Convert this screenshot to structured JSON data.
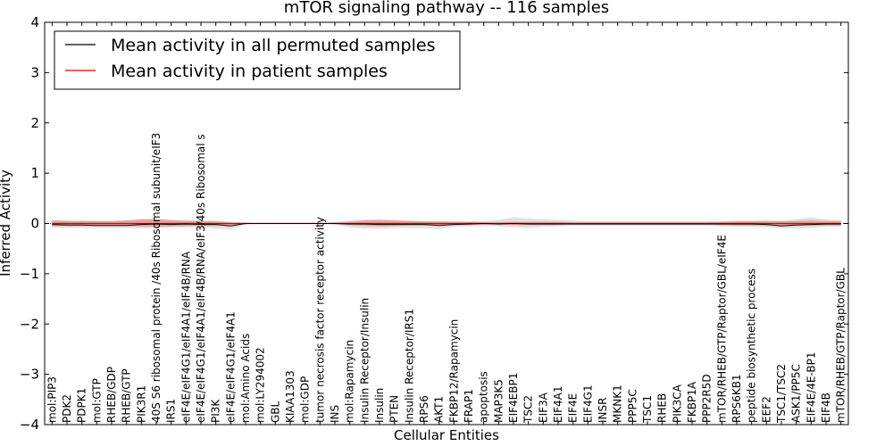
{
  "chart_data": {
    "type": "line",
    "title": "mTOR signaling pathway -- 116 samples",
    "xlabel": "Cellular Entities",
    "ylabel": "Inferred Activity",
    "ylim": [
      -4,
      4
    ],
    "yticks": [
      4,
      3,
      2,
      1,
      0,
      -1,
      -2,
      -3,
      -4
    ],
    "ytick_labels": [
      "4",
      "3",
      "2",
      "1",
      "0",
      "−1",
      "−2",
      "−3",
      "−4"
    ],
    "grid": false,
    "legend_position": "top-left",
    "colors": {
      "permuted": "#000000",
      "patient": "#e00000",
      "permuted_band": "#d9d9d9",
      "patient_band": "#f28c8c"
    },
    "categories": [
      "mol:PIP3",
      "PDK2",
      "PDPK1",
      "mol:GTP",
      "RHEB/GDP",
      "RHEB/GTP",
      "PIK3R1",
      "40S S6 ribosomal protein /40s Ribosomal subunit/eIF3",
      "IRS1",
      "eIF4E/eIF4G1/eIF4A1/eIF4B/RNA",
      "eIF4E/eIF4G1/eIF4A1/eIF4B/RNA/eIF3/40s Ribosomal s",
      "PI3K",
      "eIF4E/eIF4G1/eIF4A1",
      "mol:Amino Acids",
      "mol:LY294002",
      "GBL",
      "KIAA1303",
      "mol:GDP",
      "tumor necrosis factor receptor activity",
      "INS",
      "mol:Rapamycin",
      "Insulin Receptor/Insulin",
      "Insulin",
      "PTEN",
      "Insulin Receptor/IRS1",
      "RPS6",
      "AKT1",
      "FKBP12/Rapamycin",
      "FRAP1",
      "apoptosis",
      "MAP3K5",
      "EIF4EBP1",
      "TSC2",
      "EIF3A",
      "EIF4A1",
      "EIF4E",
      "EIF4G1",
      "INSR",
      "MKNK1",
      "PPP5C",
      "TSC1",
      "RHEB",
      "PIK3CA",
      "FKBP1A",
      "PPP2R5D",
      "mTOR/RHEB/GTP/Raptor/GBL/eIF4E",
      "RPS6KB1",
      "peptide biosynthetic process",
      "EEF2",
      "TSC1/TSC2",
      "ASK1/PP5C",
      "EIF4E/4E-BP1",
      "EIF4B",
      "mTOR/RHEB/GTP/Raptor/GBL"
    ],
    "series": [
      {
        "name": "Mean activity in all permuted samples",
        "color": "#000000",
        "values": [
          -0.02,
          -0.03,
          -0.03,
          -0.04,
          -0.04,
          -0.04,
          -0.02,
          -0.01,
          -0.02,
          -0.01,
          -0.02,
          -0.02,
          -0.05,
          0,
          0,
          0,
          0,
          0,
          0,
          0,
          -0.01,
          -0.01,
          -0.02,
          -0.02,
          -0.02,
          -0.02,
          -0.04,
          -0.02,
          -0.01,
          0,
          -0.01,
          0,
          -0.01,
          -0.01,
          -0.01,
          -0.01,
          -0.01,
          -0.01,
          -0.01,
          -0.01,
          -0.01,
          -0.01,
          -0.01,
          -0.01,
          -0.01,
          -0.01,
          -0.01,
          -0.01,
          -0.02,
          -0.05,
          -0.03,
          -0.02,
          -0.01,
          -0.01
        ],
        "band_low": [
          -0.08,
          -0.09,
          -0.09,
          -0.09,
          -0.09,
          -0.09,
          -0.1,
          -0.09,
          -0.08,
          -0.08,
          -0.08,
          -0.1,
          -0.12,
          -0.02,
          0,
          0,
          0,
          0,
          0,
          -0.02,
          -0.08,
          -0.1,
          -0.1,
          -0.09,
          -0.09,
          -0.09,
          -0.11,
          -0.07,
          -0.06,
          -0.05,
          -0.06,
          -0.07,
          -0.09,
          -0.07,
          -0.06,
          -0.05,
          -0.05,
          -0.05,
          -0.05,
          -0.05,
          -0.05,
          -0.05,
          -0.05,
          -0.05,
          -0.05,
          -0.06,
          -0.07,
          -0.07,
          -0.08,
          -0.1,
          -0.1,
          -0.09,
          -0.07,
          -0.06
        ],
        "band_high": [
          0.07,
          0.06,
          0.06,
          0.05,
          0.05,
          0.06,
          0.09,
          0.08,
          0.07,
          0.07,
          0.06,
          0.06,
          0.03,
          0.02,
          0,
          0,
          0,
          0,
          0,
          0.03,
          0.06,
          0.08,
          0.08,
          0.07,
          0.06,
          0.05,
          0.04,
          0.04,
          0.04,
          0.05,
          0.07,
          0.12,
          0.1,
          0.08,
          0.07,
          0.06,
          0.05,
          0.05,
          0.05,
          0.05,
          0.05,
          0.05,
          0.05,
          0.05,
          0.05,
          0.05,
          0.05,
          0.05,
          0.06,
          0.05,
          0.08,
          0.12,
          0.08,
          0.06
        ]
      },
      {
        "name": "Mean activity in patient samples",
        "color": "#e00000",
        "values": [
          0,
          0,
          0,
          0,
          0,
          0,
          0,
          0,
          0,
          0,
          0,
          0,
          0,
          0,
          0,
          0,
          0,
          0,
          0,
          0,
          0,
          0,
          0,
          0,
          0,
          0,
          0,
          0,
          0,
          0,
          0,
          0,
          0,
          0,
          0,
          0,
          0,
          0,
          0,
          0,
          0,
          0,
          0,
          0,
          0,
          0,
          0,
          0,
          0,
          0,
          0,
          0,
          0,
          0
        ],
        "band_low": [
          -0.06,
          -0.05,
          -0.05,
          -0.05,
          -0.05,
          -0.05,
          -0.06,
          -0.07,
          -0.06,
          -0.05,
          -0.05,
          -0.05,
          -0.03,
          -0.01,
          0,
          0,
          0,
          0,
          0,
          -0.01,
          -0.03,
          -0.05,
          -0.06,
          -0.05,
          -0.04,
          -0.04,
          -0.04,
          -0.03,
          -0.03,
          -0.02,
          -0.02,
          -0.03,
          -0.03,
          -0.03,
          -0.03,
          -0.02,
          -0.02,
          -0.02,
          -0.02,
          -0.02,
          -0.02,
          -0.02,
          -0.02,
          -0.02,
          -0.02,
          -0.03,
          -0.04,
          -0.04,
          -0.04,
          -0.04,
          -0.04,
          -0.05,
          -0.04,
          -0.04
        ],
        "band_high": [
          0.06,
          0.05,
          0.05,
          0.05,
          0.05,
          0.06,
          0.08,
          0.09,
          0.07,
          0.05,
          0.05,
          0.04,
          0.02,
          0.01,
          0,
          0,
          0,
          0,
          0,
          0.01,
          0.03,
          0.06,
          0.07,
          0.06,
          0.05,
          0.04,
          0.04,
          0.03,
          0.03,
          0.02,
          0.02,
          0.03,
          0.03,
          0.03,
          0.03,
          0.02,
          0.02,
          0.02,
          0.02,
          0.02,
          0.02,
          0.02,
          0.02,
          0.02,
          0.02,
          0.03,
          0.05,
          0.05,
          0.05,
          0.05,
          0.05,
          0.06,
          0.05,
          0.05
        ]
      }
    ]
  }
}
